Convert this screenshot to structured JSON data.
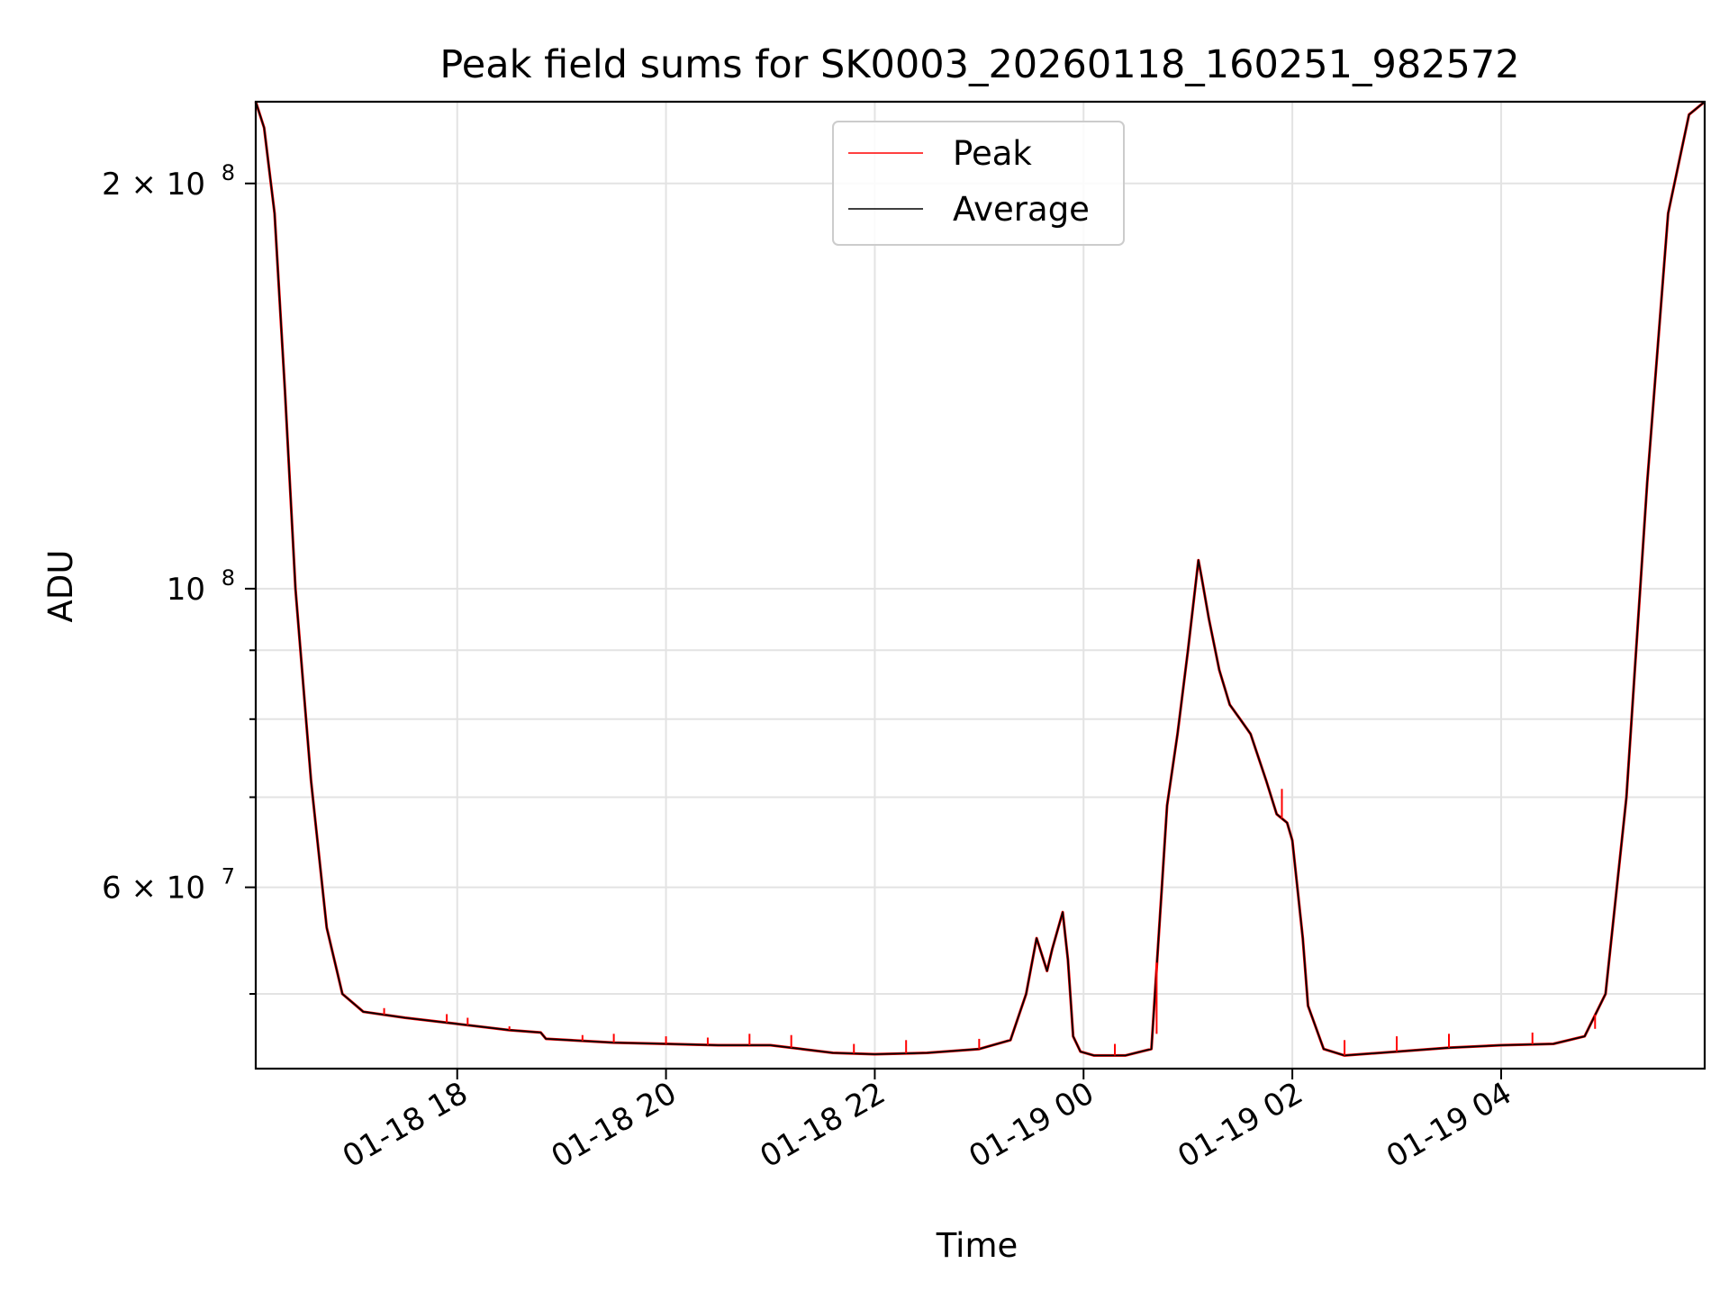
{
  "chart_data": {
    "type": "line",
    "title": "Peak field sums for SK0003_20260118_160251_982572",
    "xlabel": "Time",
    "ylabel": "ADU",
    "yscale": "log",
    "ylim": [
      44000000,
      230000000
    ],
    "xlim_hours": [
      16.07,
      5.95
    ],
    "grid": true,
    "legend": {
      "position": "top-center",
      "entries": [
        "Peak",
        "Average"
      ]
    },
    "x_ticks": [
      {
        "label": "01-18 18",
        "hour": 18.0
      },
      {
        "label": "01-18 20",
        "hour": 20.0
      },
      {
        "label": "01-18 22",
        "hour": 22.0
      },
      {
        "label": "01-19 00",
        "hour": 24.0
      },
      {
        "label": "01-19 02",
        "hour": 26.0
      },
      {
        "label": "01-19 04",
        "hour": 28.0
      }
    ],
    "y_major_ticks": [
      {
        "label": "2 × 10",
        "exp": "8",
        "value": 200000000
      },
      {
        "label": "10",
        "exp": "8",
        "value": 100000000
      },
      {
        "label": "6 × 10",
        "exp": "7",
        "value": 60000000
      }
    ],
    "y_minor_ticks": [
      50000000,
      70000000,
      80000000,
      90000000
    ],
    "colors": {
      "peak": "#ff0000",
      "average": "#000000",
      "grid": "#e3e3e3"
    },
    "series": [
      {
        "name": "Average",
        "x_hours": [
          16.07,
          16.15,
          16.25,
          16.35,
          16.45,
          16.6,
          16.75,
          16.9,
          17.1,
          17.5,
          18.0,
          18.5,
          18.8,
          18.85,
          19.5,
          20.0,
          20.5,
          21.0,
          21.3,
          21.6,
          22.0,
          22.5,
          23.0,
          23.3,
          23.45,
          23.55,
          23.65,
          23.7,
          23.8,
          23.85,
          23.9,
          23.97,
          24.1,
          24.4,
          24.65,
          24.75,
          24.8,
          24.9,
          25.0,
          25.1,
          25.13,
          25.2,
          25.3,
          25.4,
          25.5,
          25.6,
          25.75,
          25.85,
          25.95,
          26.0,
          26.1,
          26.15,
          26.3,
          26.5,
          27.0,
          27.5,
          28.0,
          28.5,
          28.8,
          29.0,
          29.2,
          29.4,
          29.6,
          29.8,
          29.95
        ],
        "values": [
          230000000,
          220000000,
          190000000,
          140000000,
          100000000,
          72000000,
          56000000,
          50000000,
          48500000,
          48000000,
          47500000,
          47000000,
          46800000,
          46300000,
          46000000,
          45900000,
          45800000,
          45800000,
          45500000,
          45200000,
          45100000,
          45200000,
          45500000,
          46200000,
          50000000,
          55000000,
          52000000,
          54000000,
          57500000,
          53000000,
          46500000,
          45300000,
          45000000,
          45000000,
          45500000,
          60000000,
          69000000,
          78000000,
          90000000,
          105000000,
          102000000,
          95000000,
          87000000,
          82000000,
          80000000,
          78000000,
          72000000,
          68000000,
          67000000,
          65000000,
          55000000,
          49000000,
          45500000,
          45000000,
          45300000,
          45600000,
          45800000,
          45900000,
          46500000,
          50000000,
          70000000,
          120000000,
          190000000,
          225000000,
          230000000
        ]
      },
      {
        "name": "Peak",
        "spikes": [
          {
            "hour": 17.3,
            "value": 48800000
          },
          {
            "hour": 17.9,
            "value": 48300000
          },
          {
            "hour": 18.1,
            "value": 48000000
          },
          {
            "hour": 18.5,
            "value": 47300000
          },
          {
            "hour": 19.2,
            "value": 46600000
          },
          {
            "hour": 19.5,
            "value": 46700000
          },
          {
            "hour": 20.0,
            "value": 46500000
          },
          {
            "hour": 20.4,
            "value": 46400000
          },
          {
            "hour": 20.8,
            "value": 46700000
          },
          {
            "hour": 21.2,
            "value": 46600000
          },
          {
            "hour": 21.8,
            "value": 45900000
          },
          {
            "hour": 22.3,
            "value": 46200000
          },
          {
            "hour": 23.0,
            "value": 46300000
          },
          {
            "hour": 24.3,
            "value": 45900000
          },
          {
            "hour": 24.7,
            "value": 46700000
          },
          {
            "hour": 25.9,
            "value": 71000000
          },
          {
            "hour": 26.5,
            "value": 46200000
          },
          {
            "hour": 27.0,
            "value": 46500000
          },
          {
            "hour": 27.5,
            "value": 46700000
          },
          {
            "hour": 28.3,
            "value": 46800000
          },
          {
            "hour": 28.9,
            "value": 47100000
          }
        ]
      }
    ]
  }
}
